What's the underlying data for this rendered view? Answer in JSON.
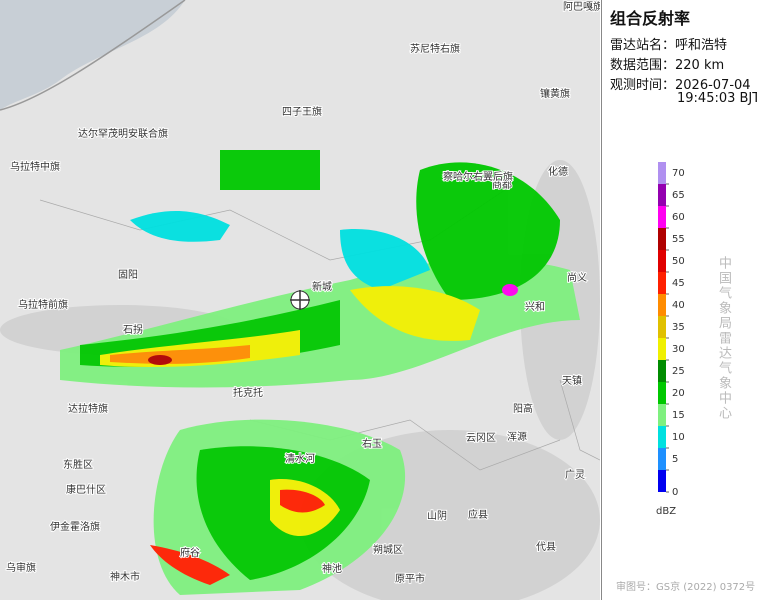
{
  "panel": {
    "title": "组合反射率",
    "station_label": "雷达站名：",
    "station": "呼和浩特",
    "range_label": "数据范围：",
    "range": "220 km",
    "time_label": "观测时间：",
    "date": "2026-07-04",
    "time": "19:45:03 BJT",
    "legend": {
      "ticks": [
        0,
        5,
        10,
        15,
        20,
        25,
        30,
        35,
        40,
        45,
        50,
        55,
        60,
        65,
        70
      ],
      "colors": [
        "#0000f0",
        "#1e90ff",
        "#00e0e0",
        "#7ff07f",
        "#00c800",
        "#008c00",
        "#f0f000",
        "#e0c000",
        "#ff8c00",
        "#ff2000",
        "#e00000",
        "#b00000",
        "#ff00f0",
        "#9400b0",
        "#b090f0"
      ],
      "unit": "dBZ"
    },
    "credit": "中国气象局雷达气象中心",
    "approval": "审图号：GS京 (2022) 0372号"
  },
  "map": {
    "places": [
      "苏尼特右旗",
      "四子王旗",
      "达尔罕茂明安联合旗",
      "镶黄旗",
      "乌拉特中旗",
      "乌拉特前旗",
      "固阳",
      "达拉特旗",
      "东胜区",
      "康巴什区",
      "伊金霍洛旗",
      "乌审旗",
      "神木市",
      "托克托",
      "清水河",
      "右玉",
      "山阴",
      "应县",
      "朔城区",
      "兴和",
      "尚义",
      "化德",
      "商都",
      "察哈尔右翼后旗",
      "阳高",
      "天镇",
      "云冈区",
      "浑源",
      "广灵",
      "代县",
      "原平市",
      "神池",
      "府谷",
      "新城",
      "阿巴嘎旗",
      "石拐"
    ]
  }
}
